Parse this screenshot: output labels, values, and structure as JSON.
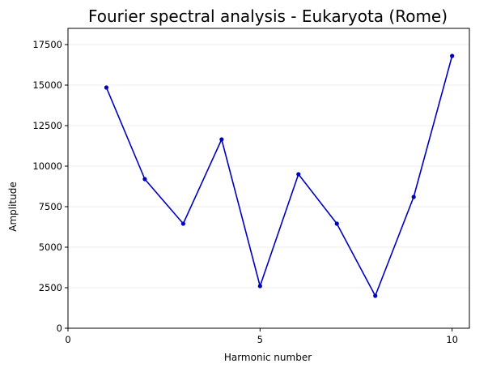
{
  "chart_data": {
    "type": "line",
    "title": "Fourier spectral analysis - Eukaryota (Rome)",
    "xlabel": "Harmonic number",
    "ylabel": "Amplitude",
    "x": [
      1,
      2,
      3,
      4,
      5,
      6,
      7,
      8,
      9,
      10
    ],
    "series": [
      {
        "values": [
          14850,
          9200,
          6450,
          11650,
          2600,
          9500,
          6450,
          2000,
          8100,
          16800
        ],
        "color": "#0000bf"
      }
    ],
    "xlim": [
      0,
      10.45
    ],
    "ylim": [
      0,
      18500
    ],
    "xticks": [
      0,
      5,
      10
    ],
    "xtick_labels": [
      "0",
      "5",
      "10"
    ],
    "yticks": [
      0,
      2500,
      5000,
      7500,
      10000,
      12500,
      15000,
      17500
    ],
    "ytick_labels": [
      "0",
      "2500",
      "5000",
      "7500",
      "10000",
      "12500",
      "15000",
      "17500"
    ],
    "grid": "horizontal",
    "marker": "circle"
  }
}
